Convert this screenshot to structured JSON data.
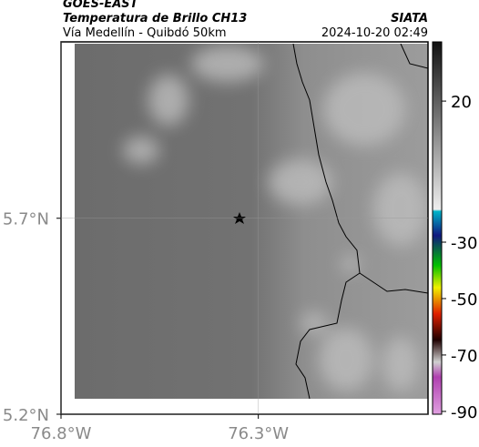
{
  "header": {
    "satellite": "GOES-EAST",
    "product": "Temperatura de Brillo CH13",
    "source": "SIATA",
    "region": "Vía Medellín - Quibdó 50km",
    "timestamp": "2024-10-20 02:49"
  },
  "axes": {
    "lat_lim": [
      5.2,
      6.15
    ],
    "lon_lim": [
      -76.8,
      -75.87
    ],
    "lat_ticks": [
      {
        "value": 5.7,
        "label": "5.7°N"
      },
      {
        "value": 5.2,
        "label": "5.2°N"
      }
    ],
    "lon_ticks": [
      {
        "value": -76.8,
        "label": "76.8°W"
      },
      {
        "value": -76.3,
        "label": "76.3°W"
      }
    ]
  },
  "colorbar": {
    "lim": [
      41,
      -91
    ],
    "ticks": [
      20,
      -30,
      -50,
      -70,
      -90
    ]
  }
}
